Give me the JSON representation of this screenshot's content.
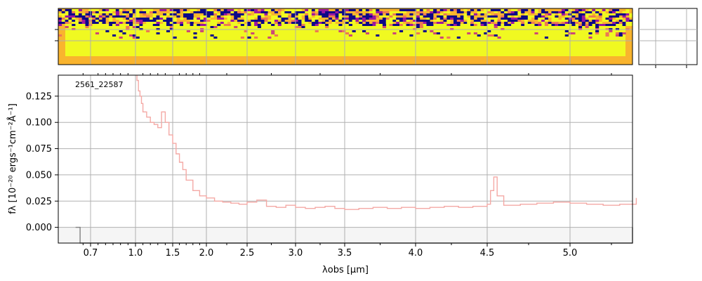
{
  "chart_data": [
    {
      "type": "heatmap",
      "panel": "2d-spectrum",
      "colormap": "plasma-like (yellow/orange/purple)",
      "grid": true
    },
    {
      "type": "line",
      "panel": "1d-spectrum",
      "annotation": "2561_22587",
      "xlabel": "λobs [μm]",
      "ylabel": "fλ [10⁻²⁰ ergs⁻¹cm⁻²Å⁻¹]",
      "x_scale": "nonlinear (dispersion)",
      "x_ticks": [
        "0.7",
        "1.0",
        "1.5",
        "2.0",
        "2.5",
        "3.0",
        "3.5",
        "4.0",
        "4.5",
        "5.0"
      ],
      "x_tick_values": [
        0.7,
        1.0,
        1.5,
        2.0,
        2.5,
        3.0,
        3.5,
        4.0,
        4.5,
        5.0
      ],
      "y_ticks": [
        "0.000",
        "0.025",
        "0.050",
        "0.075",
        "0.100",
        "0.125"
      ],
      "y_tick_values": [
        0.0,
        0.025,
        0.05,
        0.075,
        0.1,
        0.125
      ],
      "xlim": [
        0.6,
        5.45
      ],
      "ylim": [
        -0.015,
        0.145
      ],
      "grid": true,
      "series": [
        {
          "color": "#f4a9a5",
          "step": true,
          "x": [
            1.02,
            1.04,
            1.06,
            1.08,
            1.1,
            1.15,
            1.2,
            1.25,
            1.3,
            1.35,
            1.4,
            1.45,
            1.5,
            1.55,
            1.6,
            1.65,
            1.7,
            1.8,
            1.9,
            2.0,
            2.1,
            2.2,
            2.3,
            2.4,
            2.5,
            2.6,
            2.7,
            2.8,
            2.9,
            3.0,
            3.1,
            3.2,
            3.3,
            3.4,
            3.5,
            3.6,
            3.7,
            3.8,
            3.9,
            4.0,
            4.1,
            4.2,
            4.3,
            4.4,
            4.5,
            4.52,
            4.54,
            4.56,
            4.6,
            4.7,
            4.8,
            4.9,
            5.0,
            5.1,
            5.2,
            5.3,
            5.4
          ],
          "y": [
            0.14,
            0.13,
            0.125,
            0.118,
            0.11,
            0.105,
            0.1,
            0.098,
            0.095,
            0.11,
            0.1,
            0.088,
            0.08,
            0.07,
            0.062,
            0.055,
            0.045,
            0.035,
            0.03,
            0.028,
            0.025,
            0.024,
            0.023,
            0.022,
            0.024,
            0.026,
            0.02,
            0.019,
            0.021,
            0.019,
            0.018,
            0.019,
            0.02,
            0.018,
            0.017,
            0.018,
            0.019,
            0.018,
            0.019,
            0.018,
            0.019,
            0.02,
            0.019,
            0.02,
            0.022,
            0.035,
            0.048,
            0.03,
            0.021,
            0.022,
            0.023,
            0.024,
            0.023,
            0.022,
            0.021,
            0.022,
            0.028
          ]
        },
        {
          "color": "#808080",
          "role": "background/error shading",
          "x": [
            0.6,
            0.63,
            0.63,
            5.38,
            5.38,
            5.45
          ],
          "y": [
            0.0,
            0.0,
            -0.015,
            -0.015,
            0.0,
            0.0
          ]
        }
      ]
    }
  ]
}
